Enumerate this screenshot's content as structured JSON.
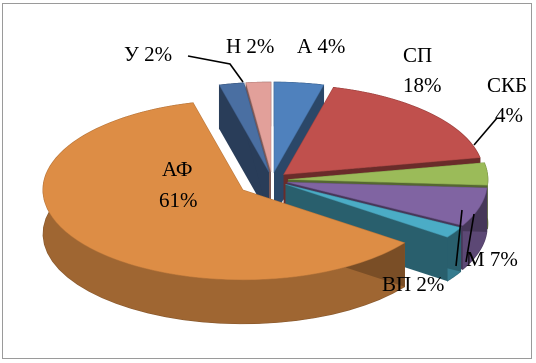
{
  "chart_data": {
    "type": "pie",
    "three_d": true,
    "exploded": true,
    "title": "",
    "slices": [
      {
        "name": "А",
        "value": 4,
        "label": "А 4%",
        "color": "#4f81bd"
      },
      {
        "name": "СП",
        "value": 18,
        "label": "СП 18%",
        "color": "#c0504d"
      },
      {
        "name": "СКБ",
        "value": 4,
        "label": "СКБ 4%",
        "color": "#9bbb59"
      },
      {
        "name": "М",
        "value": 7,
        "label": "М 7%",
        "color": "#8064a2"
      },
      {
        "name": "ВП",
        "value": 2,
        "label": "ВП 2%",
        "color": "#4bacc6"
      },
      {
        "name": "",
        "value": 0,
        "label": "",
        "color": "#23505f"
      },
      {
        "name": "АФ",
        "value": 61,
        "label": "АФ 61%",
        "color": "#dd8d45"
      },
      {
        "name": "У",
        "value": 2,
        "label": "У 2%",
        "color": "#4a6fa2"
      },
      {
        "name": "Н",
        "value": 2,
        "label": "Н 2%",
        "color": "#e2a09a"
      }
    ]
  },
  "labels": {
    "n": "Н 2%",
    "a": "А 4%",
    "y": "У 2%",
    "sp_name": "СП",
    "sp_pct": "18%",
    "skb_name": "СКБ",
    "skb_pct": "4%",
    "af_name": "АФ",
    "af_pct": "61%",
    "m": "М 7%",
    "vp": "ВП 2%"
  }
}
